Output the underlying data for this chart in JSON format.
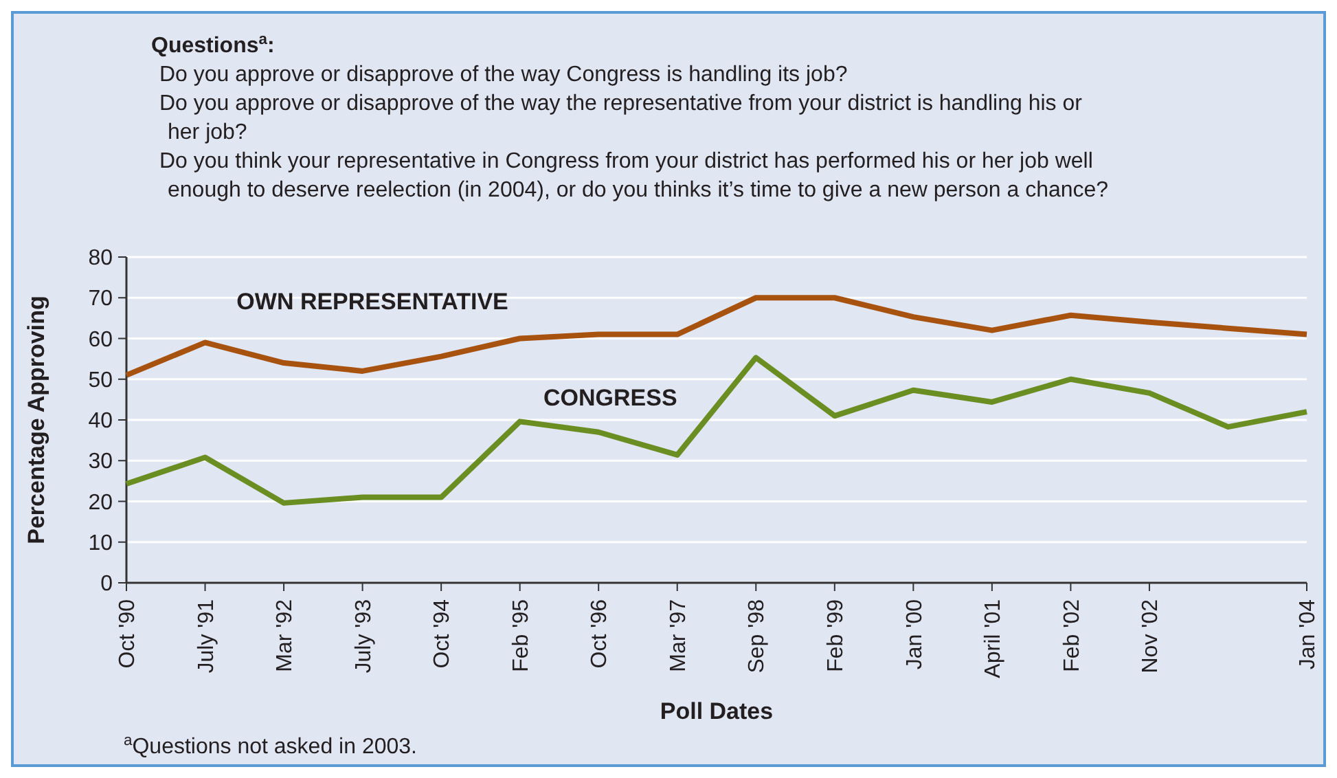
{
  "chart_data": {
    "type": "line",
    "title": "Questions$^{a}$:",
    "annotations": [
      "Do you approve or disapprove of the way Congress is handling its job?",
      "Do you approve or disapprove of the way the representative from your district is handling his or her job?",
      "Do you think your representative in Congress from your district has performed his or her job well enough to deserve reelection (in 2004), or do you thinks it’s time to give a new person a chance?",
      "$^{a}$Questions not asked in 2003."
    ],
    "xlabel": "Poll Dates",
    "ylabel": "Percentage Approving",
    "categories": [
      "Oct '90",
      "July '91",
      "Mar '92",
      "July '93",
      "Oct '94",
      "Feb '95",
      "Oct '96",
      "Mar '97",
      "Sep '98",
      "Feb '99",
      "Jan '00",
      "April '01",
      "Feb '02",
      "Nov '02",
      null,
      "Jan '04"
    ],
    "ylim": [
      0,
      80
    ],
    "yticks": [
      0,
      10,
      20,
      30,
      40,
      50,
      60,
      70,
      80
    ],
    "grid": "y",
    "marker": "none",
    "line_style": "solid",
    "series": [
      {
        "name": "OWN REPRESENTATIVE",
        "color": "#a8520f",
        "values": [
          51,
          59,
          54,
          52,
          55.6,
          60,
          61,
          61,
          70,
          70,
          65.3,
          62,
          65.7,
          64,
          62.5,
          61
        ]
      },
      {
        "name": "CONGRESS",
        "color": "#6b8e23",
        "values": [
          24.3,
          30.8,
          19.6,
          21,
          21,
          39.6,
          37,
          31.4,
          55.3,
          41,
          47.3,
          44.4,
          50,
          46.6,
          38.3,
          42
        ]
      }
    ]
  }
}
